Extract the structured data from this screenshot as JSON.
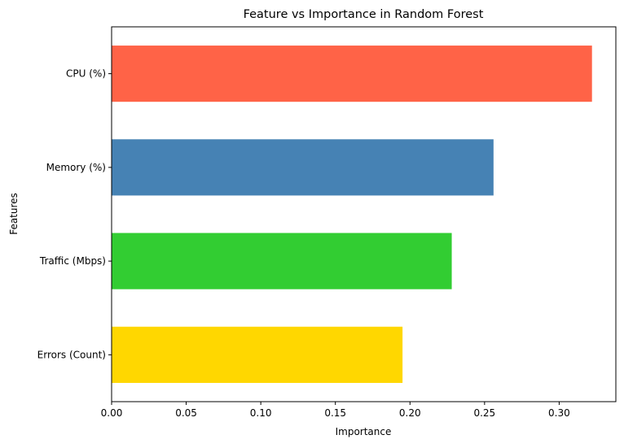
{
  "chart_data": {
    "type": "bar",
    "orientation": "horizontal",
    "title": "Feature vs Importance in Random Forest",
    "xlabel": "Importance",
    "ylabel": "Features",
    "categories": [
      "CPU (%)",
      "Memory (%)",
      "Traffic (Mbps)",
      "Errors (Count)"
    ],
    "values": [
      0.322,
      0.256,
      0.228,
      0.195
    ],
    "colors": [
      "#FF6347",
      "#4682B4",
      "#32CD32",
      "#FFD700"
    ],
    "xlim": [
      0,
      0.338
    ],
    "xticks": [
      0.0,
      0.05,
      0.1,
      0.15,
      0.2,
      0.25,
      0.3
    ],
    "xtick_labels": [
      "0.00",
      "0.05",
      "0.10",
      "0.15",
      "0.20",
      "0.25",
      "0.30"
    ],
    "grid": false,
    "legend": "none"
  }
}
